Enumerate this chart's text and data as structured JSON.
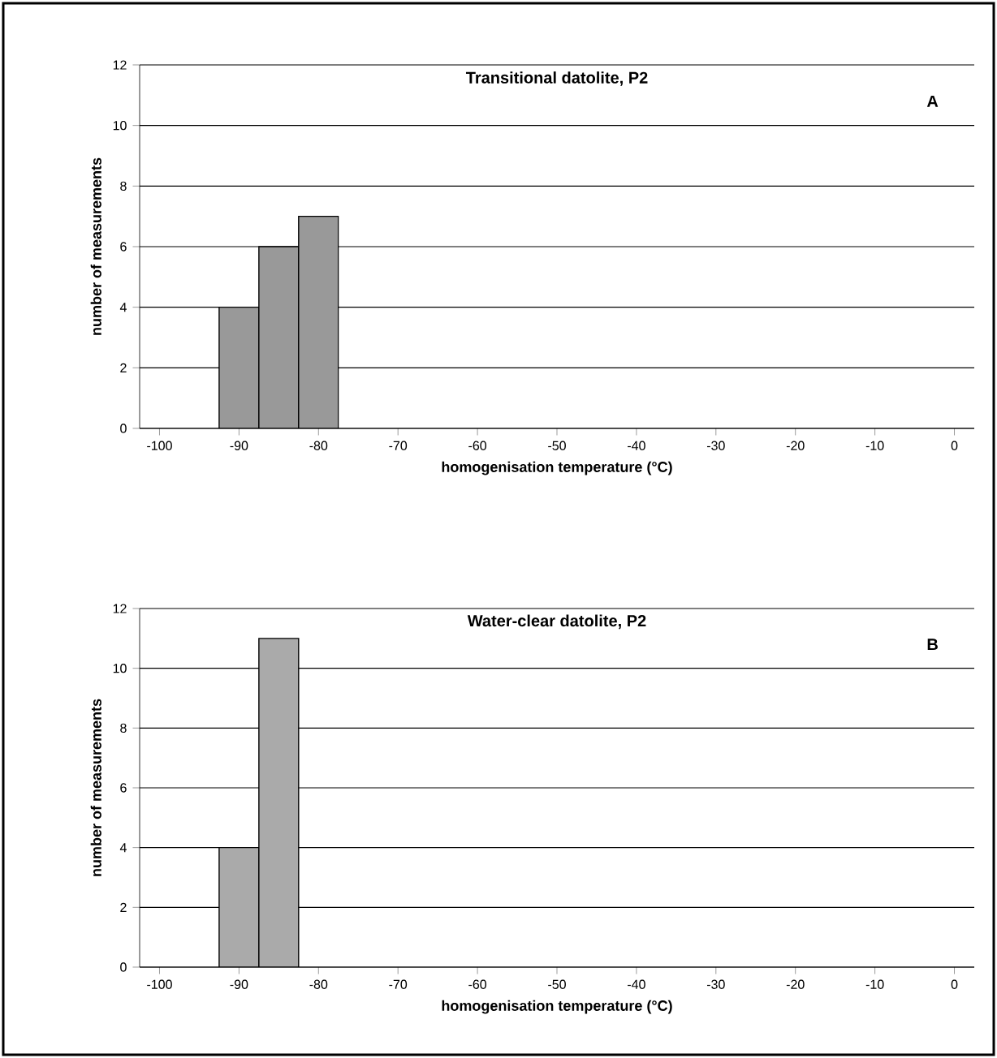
{
  "chart_data": [
    {
      "type": "histogram",
      "title": "Transitional datolite, P2",
      "xlabel": "homogenisation temperature (°C)",
      "ylabel": "number of measurements",
      "annotations": [
        "A"
      ],
      "bins": [
        -92.5,
        -87.5,
        -82.5,
        -77.5
      ],
      "values": [
        4,
        6,
        7
      ],
      "color": "#999999",
      "xlim": [
        -102.5,
        2.5
      ],
      "ylim": [
        0,
        12
      ],
      "xticks": [
        -100,
        -90,
        -80,
        -70,
        -60,
        -50,
        -40,
        -30,
        -20,
        -10,
        0
      ],
      "yticks": [
        0,
        2,
        4,
        6,
        8,
        10,
        12
      ],
      "grid": "y"
    },
    {
      "type": "histogram",
      "title": "Water-clear datolite, P2",
      "xlabel": "homogenisation temperature (°C)",
      "ylabel": "number of measurements",
      "annotations": [
        "B"
      ],
      "bins": [
        -92.5,
        -87.5,
        -82.5
      ],
      "values": [
        4,
        11
      ],
      "color": "#aaaaaa",
      "xlim": [
        -102.5,
        2.5
      ],
      "ylim": [
        0,
        12
      ],
      "xticks": [
        -100,
        -90,
        -80,
        -70,
        -60,
        -50,
        -40,
        -30,
        -20,
        -10,
        0
      ],
      "yticks": [
        0,
        2,
        4,
        6,
        8,
        10,
        12
      ],
      "grid": "y"
    }
  ]
}
